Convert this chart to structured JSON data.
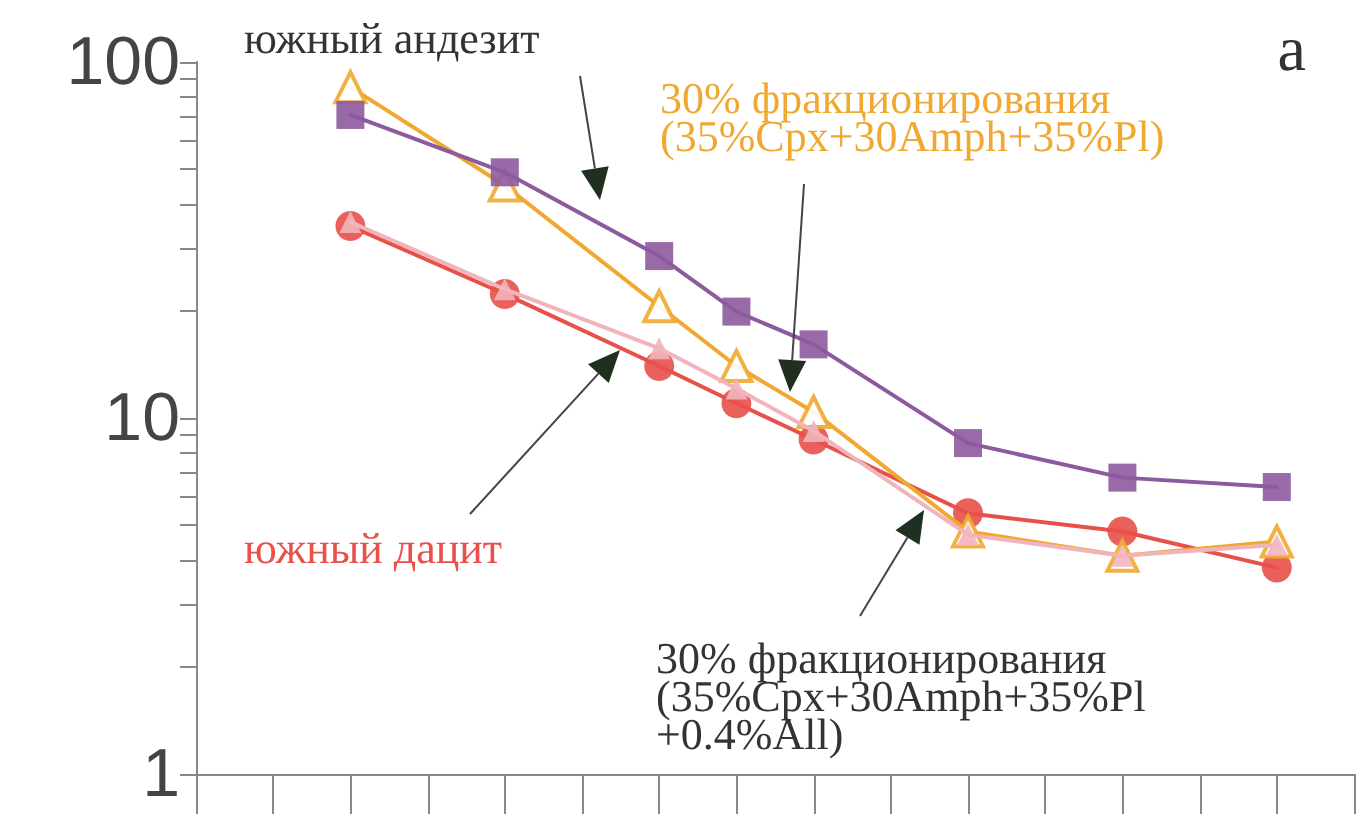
{
  "chart_data": {
    "type": "line",
    "log": "y",
    "categories": [
      null,
      null,
      null,
      null,
      null,
      null,
      null,
      null,
      null,
      null,
      null,
      null,
      null,
      null,
      null,
      null
    ],
    "ylim": [
      1,
      100
    ],
    "yticks": [
      1,
      {
        "value": 2,
        "label": null
      },
      {
        "value": 3,
        "label": null
      },
      {
        "value": 4,
        "label": null
      },
      {
        "value": 5,
        "label": null
      },
      {
        "value": 6,
        "label": null
      },
      {
        "value": 7,
        "label": null
      },
      {
        "value": 8,
        "label": null
      },
      {
        "value": 9,
        "label": null
      },
      10,
      {
        "value": 20,
        "label": null
      },
      {
        "value": 30,
        "label": null
      },
      {
        "value": 40,
        "label": null
      },
      {
        "value": 50,
        "label": null
      },
      {
        "value": 60,
        "label": null
      },
      {
        "value": 70,
        "label": null
      },
      {
        "value": 80,
        "label": null
      },
      {
        "value": 90,
        "label": null
      },
      100
    ],
    "tick_labels": "y",
    "grid": false,
    "legend": false,
    "series": [
      {
        "name": "южный андезит",
        "color": "#8e5a9e",
        "marker": "square",
        "values": [
          null,
          null,
          71,
          null,
          49,
          null,
          28.5,
          19.9,
          16.1,
          null,
          8.5,
          null,
          6.8,
          null,
          6.4,
          null
        ]
      },
      {
        "name": "30% фракционирования\n(35%Cpx+30Amph+35%Pl)",
        "color": "#f0a830",
        "marker": "triangle",
        "values": [
          null,
          null,
          85,
          null,
          45,
          null,
          20.6,
          14,
          10.4,
          null,
          4.8,
          null,
          4.1,
          null,
          4.5,
          null
        ]
      },
      {
        "name": "южный дацит",
        "color": "#e8504a",
        "marker": "circle",
        "values": [
          null,
          null,
          34.6,
          null,
          22.3,
          null,
          14,
          11,
          8.7,
          null,
          5.4,
          null,
          4.8,
          null,
          3.8,
          null
        ]
      },
      {
        "name": "30% фракционирования\n(35%Cpx+30Amph+35%Pl\n+0.4%All)",
        "color": "#f2b4bc",
        "marker": "triangle",
        "values": [
          null,
          null,
          35.5,
          null,
          23,
          null,
          15.7,
          12.1,
          9.2,
          null,
          4.7,
          null,
          4.1,
          null,
          4.4,
          null
        ]
      }
    ],
    "annotations": [
      "a"
    ]
  }
}
